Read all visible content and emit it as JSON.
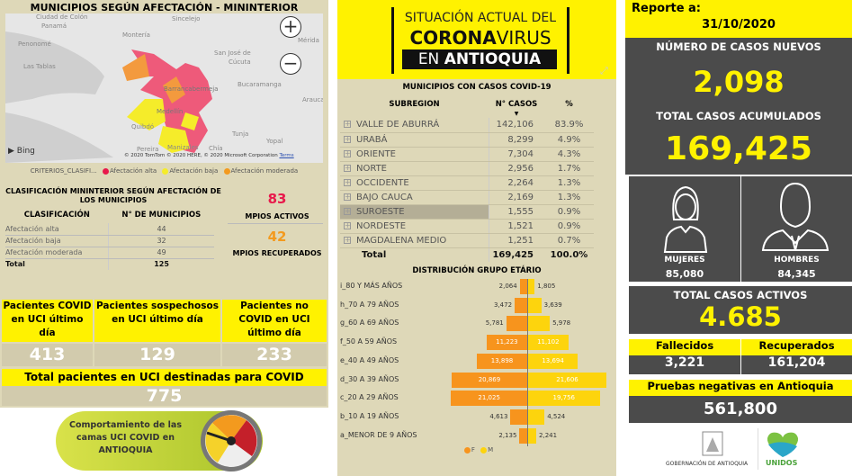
{
  "map_panel": {
    "title": "MUNICIPIOS SEGÚN AFECTACIÓN - MININTERIOR",
    "labels": [
      "Ciudad de Colón",
      "Panamá",
      "Penonomé",
      "Las Tablas",
      "Montería",
      "Sincelejo",
      "San José de",
      "Cúcuta",
      "Mérida",
      "San",
      "Bucaramanga",
      "Arauca",
      "Quibdó",
      "Medellín",
      "Barrancabermeja",
      "Manizales",
      "Tunja",
      "Yopal",
      "Chía",
      "Pereira"
    ],
    "bing": "Bing",
    "attribution": "© 2020 TomTom © 2020 HERE, © 2020 Microsoft Corporation",
    "terms": "Terms",
    "zoom_in": "+",
    "zoom_out": "−",
    "legend": {
      "title": "CRITERIOS_CLASIFI...",
      "items": [
        {
          "label": "Afectación alta",
          "color": "#e8194b"
        },
        {
          "label": "Afectación baja",
          "color": "#f5ec2a"
        },
        {
          "label": "Afectación moderada",
          "color": "#f39a1e"
        }
      ]
    }
  },
  "classification": {
    "title": "CLASIFICACIÓN MININTERIOR SEGÚN AFECTACIÓN DE LOS MUNICIPIOS",
    "headers": [
      "CLASIFICACIÓN",
      "N° DE MUNICIPIOS"
    ],
    "rows": [
      [
        "Afectación alta",
        "44"
      ],
      [
        "Afectación baja",
        "32"
      ],
      [
        "Afectación moderada",
        "49"
      ]
    ],
    "total": [
      "Total",
      "125"
    ]
  },
  "mpios": {
    "activos": "83",
    "activos_label": "MPIOS ACTIVOS",
    "activos_color": "#e8194b",
    "recuperados": "42",
    "recuperados_label": "MPIOS RECUPERADOS",
    "recuperados_color": "#f39a1e"
  },
  "uci": {
    "items": [
      {
        "label": "Pacientes COVID en UCI último día",
        "value": "413"
      },
      {
        "label": "Pacientes sospechosos en UCI último día",
        "value": "129"
      },
      {
        "label": "Pacientes no COVID en UCI último día",
        "value": "233"
      }
    ],
    "total_label": "Total pacientes en UCI destinadas para COVID",
    "total_value": "775",
    "button_label": "Comportamiento de las camas UCI COVID en ANTIOQUIA"
  },
  "banner": {
    "line1": "SITUACIÓN ACTUAL DEL",
    "line2a": "CORONA",
    "line2b": "VIRUS",
    "line3a": "EN ",
    "line3b": "ANTIOQUIA"
  },
  "subregions": {
    "title": "MUNICIPIOS CON CASOS COVID-19",
    "headers": [
      "SUBREGION",
      "N° CASOS",
      "%"
    ],
    "rows": [
      [
        "VALLE DE ABURRÁ",
        "142,106",
        "83.9%"
      ],
      [
        "URABÁ",
        "8,299",
        "4.9%"
      ],
      [
        "ORIENTE",
        "7,304",
        "4.3%"
      ],
      [
        "NORTE",
        "2,956",
        "1.7%"
      ],
      [
        "OCCIDENTE",
        "2,264",
        "1.3%"
      ],
      [
        "BAJO CAUCA",
        "2,169",
        "1.3%"
      ],
      [
        "SUROESTE",
        "1,555",
        "0.9%"
      ],
      [
        "NORDESTE",
        "1,521",
        "0.9%"
      ],
      [
        "MAGDALENA MEDIO",
        "1,251",
        "0.7%"
      ]
    ],
    "total": [
      "Total",
      "169,425",
      "100.0%"
    ],
    "selected": "SUROESTE"
  },
  "chart_data": {
    "type": "bar",
    "title": "DISTRIBUCIÓN GRUPO ETÁRIO",
    "orientation": "horizontal-pyramid",
    "categories": [
      "i_80 Y MÁS AÑOS",
      "h_70 A 79 AÑOS",
      "g_60 A 69 AÑOS",
      "f_50 A 59 AÑOS",
      "e_40 A 49 AÑOS",
      "d_30 A 39 AÑOS",
      "c_20 A 29 AÑOS",
      "b_10 A 19 AÑOS",
      "a_MENOR DE 9 AÑOS"
    ],
    "series": [
      {
        "name": "F",
        "color": "#f7941d",
        "values": [
          2064,
          3472,
          5781,
          11223,
          13898,
          20869,
          21025,
          4613,
          2135
        ]
      },
      {
        "name": "M",
        "color": "#fdd40d",
        "values": [
          1805,
          3639,
          5978,
          11102,
          13694,
          21606,
          19756,
          4524,
          2241
        ]
      }
    ],
    "legend": "bottom"
  },
  "report": {
    "label": "Reporte a:",
    "date": "31/10/2020",
    "new_cases_label": "NÚMERO DE CASOS NUEVOS",
    "new_cases": "2,098",
    "total_label": "TOTAL CASOS ACUMULADOS",
    "total": "169,425",
    "women_label": "MUJERES",
    "women": "85,080",
    "men_label": "HOMBRES",
    "men": "84,345",
    "active_label": "TOTAL CASOS ACTIVOS",
    "active": "4.685",
    "deaths_label": "Fallecidos",
    "deaths": "3,221",
    "recovered_label": "Recuperados",
    "recovered": "161,204",
    "negative_label": "Pruebas negativas en Antioquia",
    "negative": "561,800",
    "gov_label": "GOBERNACIÓN DE ANTIOQUIA",
    "unidos_label": "UNIDOS"
  }
}
